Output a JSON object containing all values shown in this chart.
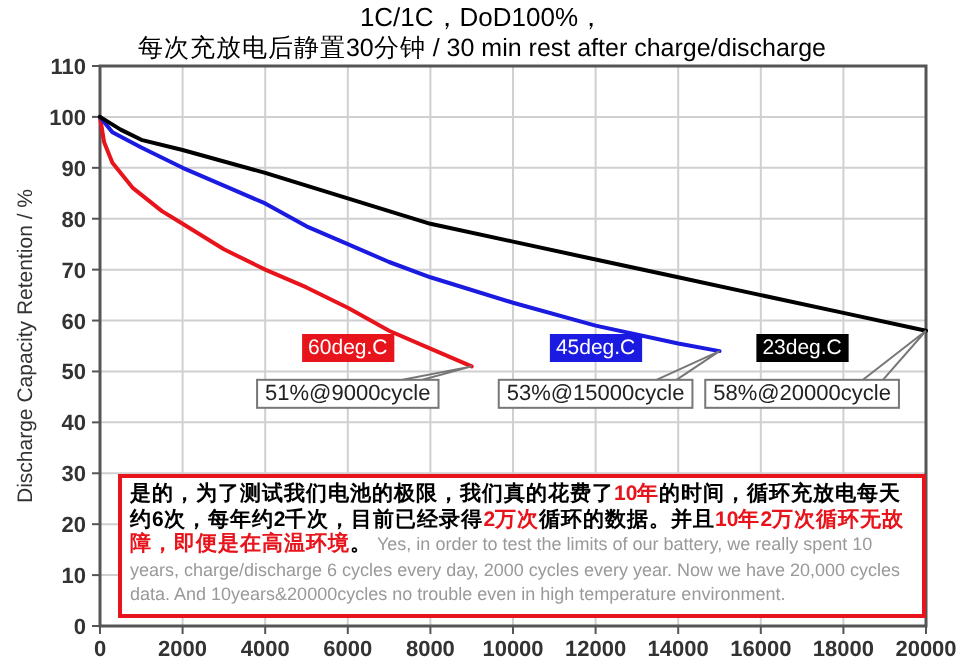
{
  "chart_data": {
    "type": "line",
    "title": "1C/1C，DoD100%，",
    "subtitle": "每次充放电后静置30分钟 / 30 min rest after charge/discharge",
    "ylabel": "Discharge Capacity Retention / %",
    "xlim": [
      0,
      20000
    ],
    "xticks": [
      0,
      2000,
      4000,
      6000,
      8000,
      10000,
      12000,
      14000,
      16000,
      18000,
      20000
    ],
    "ylim": [
      0,
      110
    ],
    "yticks": [
      0,
      10,
      20,
      30,
      40,
      50,
      60,
      70,
      80,
      90,
      100,
      110
    ],
    "grid": true,
    "line_style": "solid",
    "marker": "none",
    "series": [
      {
        "name": "60deg.C",
        "color": "#e8141c",
        "x": [
          0,
          100,
          300,
          800,
          1500,
          2000,
          3000,
          4000,
          5000,
          6000,
          7000,
          8000,
          9000
        ],
        "values": [
          100,
          95,
          91,
          86,
          81.5,
          79,
          74,
          70,
          66.5,
          62.5,
          58,
          54.5,
          51
        ]
      },
      {
        "name": "45deg.C",
        "color": "#1a1ae0",
        "x": [
          0,
          300,
          1000,
          2000,
          3000,
          4000,
          5000,
          6000,
          7000,
          8000,
          10000,
          12000,
          14000,
          15000
        ],
        "values": [
          100,
          97,
          94,
          90,
          86.5,
          83,
          78.5,
          75,
          71.5,
          68.5,
          63.5,
          59,
          55.5,
          54
        ]
      },
      {
        "name": "23deg.C",
        "color": "#000000",
        "x": [
          0,
          500,
          1000,
          2000,
          4000,
          6000,
          8000,
          10000,
          12000,
          14000,
          16000,
          18000,
          20000
        ],
        "values": [
          100,
          97.5,
          95.5,
          93.5,
          89,
          84,
          79,
          75.5,
          72,
          68.5,
          65,
          61.5,
          58
        ]
      }
    ],
    "annotations": [
      {
        "text": "51%@9000cycle",
        "x": 9000,
        "y": 51
      },
      {
        "text": "53%@15000cycle",
        "x": 15000,
        "y": 54
      },
      {
        "text": "58%@20000cycle",
        "x": 20000,
        "y": 58
      },
      "是的，为了测试我们电池的极限，我们真的花费了",
      "10年",
      "的时间，循环充放电每天约6次，每年约2千次，目前已经录得",
      "2万次",
      "循环的数据。并且",
      "10年2万次循环无故障，即便是在高温环境",
      "。",
      "Yes, in order to test the limits of our battery, we really spent 10 years, charge/discharge 6 cycles every day, 2000 cycles every year. Now we have 20,000 cycles data. And 10years&20000cycles no trouble even in high temperature environment."
    ]
  }
}
